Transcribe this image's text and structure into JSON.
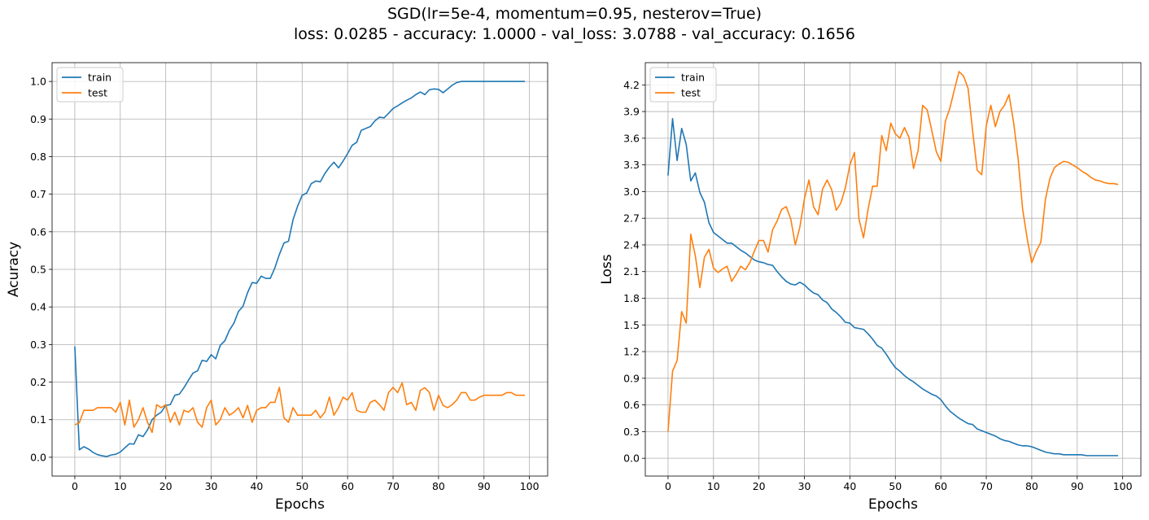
{
  "figure": {
    "title_line1": "SGD(lr=5e-4, momentum=0.95, nesterov=True)",
    "title_line2": "loss: 0.0285 - accuracy: 1.0000 - val_loss: 3.0788 - val_accuracy: 0.1656"
  },
  "colors": {
    "train": "#1f77b4",
    "test": "#ff7f0e",
    "grid": "#b0b0b0"
  },
  "chart_data": [
    {
      "type": "line",
      "title": "",
      "xlabel": "Epochs",
      "ylabel": "Acuracy",
      "xlim": [
        -5,
        104
      ],
      "ylim": [
        -0.05,
        1.05
      ],
      "xticks": [
        0,
        10,
        20,
        30,
        40,
        50,
        60,
        70,
        80,
        90,
        100
      ],
      "yticks": [
        0.0,
        0.1,
        0.2,
        0.3,
        0.4,
        0.5,
        0.6,
        0.7,
        0.8,
        0.9,
        1.0
      ],
      "ytick_labels": [
        "0.0",
        "0.1",
        "0.2",
        "0.3",
        "0.4",
        "0.5",
        "0.6",
        "0.7",
        "0.8",
        "0.9",
        "1.0"
      ],
      "grid": true,
      "legend_position": "upper-left",
      "series": [
        {
          "name": "train",
          "color": "#1f77b4",
          "values": [
            0.295,
            0.02,
            0.028,
            0.022,
            0.013,
            0.007,
            0.004,
            0.002,
            0.006,
            0.008,
            0.014,
            0.025,
            0.036,
            0.035,
            0.06,
            0.055,
            0.073,
            0.1,
            0.112,
            0.12,
            0.138,
            0.14,
            0.165,
            0.168,
            0.185,
            0.205,
            0.224,
            0.23,
            0.258,
            0.255,
            0.273,
            0.262,
            0.298,
            0.31,
            0.338,
            0.357,
            0.388,
            0.402,
            0.438,
            0.465,
            0.463,
            0.482,
            0.476,
            0.476,
            0.504,
            0.54,
            0.57,
            0.575,
            0.632,
            0.668,
            0.697,
            0.703,
            0.728,
            0.735,
            0.733,
            0.755,
            0.772,
            0.785,
            0.77,
            0.788,
            0.808,
            0.83,
            0.838,
            0.87,
            0.875,
            0.88,
            0.895,
            0.905,
            0.903,
            0.915,
            0.928,
            0.935,
            0.943,
            0.95,
            0.956,
            0.965,
            0.972,
            0.965,
            0.978,
            0.98,
            0.979,
            0.97,
            0.98,
            0.99,
            0.997,
            1.0,
            1.0,
            1.0,
            1.0,
            1.0,
            1.0,
            1.0,
            1.0,
            1.0,
            1.0,
            1.0,
            1.0,
            1.0,
            1.0,
            1.0
          ]
        },
        {
          "name": "test",
          "color": "#ff7f0e",
          "values": [
            0.086,
            0.092,
            0.125,
            0.125,
            0.125,
            0.132,
            0.132,
            0.132,
            0.132,
            0.12,
            0.146,
            0.086,
            0.152,
            0.08,
            0.1,
            0.132,
            0.093,
            0.066,
            0.14,
            0.132,
            0.14,
            0.093,
            0.12,
            0.086,
            0.125,
            0.12,
            0.132,
            0.093,
            0.08,
            0.132,
            0.152,
            0.086,
            0.1,
            0.132,
            0.112,
            0.12,
            0.132,
            0.105,
            0.138,
            0.093,
            0.125,
            0.132,
            0.132,
            0.146,
            0.146,
            0.186,
            0.105,
            0.093,
            0.132,
            0.112,
            0.112,
            0.112,
            0.112,
            0.125,
            0.105,
            0.12,
            0.16,
            0.112,
            0.132,
            0.16,
            0.152,
            0.172,
            0.125,
            0.12,
            0.12,
            0.146,
            0.152,
            0.14,
            0.125,
            0.172,
            0.186,
            0.172,
            0.198,
            0.14,
            0.146,
            0.125,
            0.178,
            0.185,
            0.172,
            0.125,
            0.165,
            0.138,
            0.132,
            0.14,
            0.152,
            0.172,
            0.172,
            0.152,
            0.152,
            0.16,
            0.165,
            0.165,
            0.165,
            0.165,
            0.165,
            0.172,
            0.172,
            0.165,
            0.165,
            0.165
          ]
        }
      ]
    },
    {
      "type": "line",
      "title": "",
      "xlabel": "Epochs",
      "ylabel": "Loss",
      "xlim": [
        -5,
        104
      ],
      "ylim": [
        -0.2,
        4.45
      ],
      "xticks": [
        0,
        10,
        20,
        30,
        40,
        50,
        60,
        70,
        80,
        90,
        100
      ],
      "yticks": [
        0.0,
        0.3,
        0.6,
        0.9,
        1.2,
        1.5,
        1.8,
        2.1,
        2.4,
        2.7,
        3.0,
        3.3,
        3.6,
        3.9,
        4.2
      ],
      "ytick_labels": [
        "0.0",
        "0.3",
        "0.6",
        "0.9",
        "1.2",
        "1.5",
        "1.8",
        "2.1",
        "2.4",
        "2.7",
        "3.0",
        "3.3",
        "3.6",
        "3.9",
        "4.2"
      ],
      "grid": true,
      "legend_position": "upper-left",
      "series": [
        {
          "name": "train",
          "color": "#1f77b4",
          "values": [
            3.18,
            3.82,
            3.35,
            3.71,
            3.53,
            3.12,
            3.21,
            2.99,
            2.88,
            2.65,
            2.54,
            2.5,
            2.46,
            2.42,
            2.42,
            2.38,
            2.34,
            2.31,
            2.27,
            2.23,
            2.21,
            2.2,
            2.18,
            2.17,
            2.1,
            2.04,
            1.99,
            1.96,
            1.95,
            1.98,
            1.95,
            1.9,
            1.86,
            1.84,
            1.78,
            1.75,
            1.68,
            1.64,
            1.59,
            1.53,
            1.52,
            1.47,
            1.46,
            1.45,
            1.4,
            1.34,
            1.27,
            1.24,
            1.17,
            1.09,
            1.02,
            0.98,
            0.93,
            0.89,
            0.86,
            0.82,
            0.78,
            0.75,
            0.72,
            0.7,
            0.66,
            0.59,
            0.53,
            0.49,
            0.45,
            0.42,
            0.39,
            0.38,
            0.33,
            0.31,
            0.29,
            0.27,
            0.25,
            0.22,
            0.2,
            0.19,
            0.17,
            0.15,
            0.14,
            0.14,
            0.13,
            0.11,
            0.09,
            0.07,
            0.06,
            0.05,
            0.05,
            0.04,
            0.04,
            0.04,
            0.04,
            0.04,
            0.03,
            0.03,
            0.03,
            0.03,
            0.03,
            0.03,
            0.03,
            0.03
          ]
        },
        {
          "name": "test",
          "color": "#ff7f0e",
          "values": [
            0.3,
            0.98,
            1.1,
            1.65,
            1.52,
            2.52,
            2.28,
            1.92,
            2.26,
            2.35,
            2.14,
            2.09,
            2.13,
            2.16,
            1.99,
            2.07,
            2.16,
            2.12,
            2.2,
            2.33,
            2.45,
            2.45,
            2.32,
            2.57,
            2.67,
            2.8,
            2.83,
            2.69,
            2.4,
            2.6,
            2.92,
            3.13,
            2.83,
            2.74,
            3.03,
            3.13,
            3.02,
            2.79,
            2.87,
            3.04,
            3.3,
            3.44,
            2.69,
            2.48,
            2.8,
            3.06,
            3.06,
            3.63,
            3.46,
            3.77,
            3.65,
            3.6,
            3.72,
            3.61,
            3.26,
            3.46,
            3.97,
            3.92,
            3.69,
            3.45,
            3.34,
            3.79,
            3.94,
            4.15,
            4.35,
            4.3,
            4.16,
            3.68,
            3.24,
            3.19,
            3.74,
            3.97,
            3.73,
            3.9,
            3.97,
            4.09,
            3.78,
            3.37,
            2.8,
            2.47,
            2.2,
            2.33,
            2.43,
            2.91,
            3.15,
            3.27,
            3.31,
            3.34,
            3.33,
            3.3,
            3.27,
            3.23,
            3.2,
            3.16,
            3.13,
            3.12,
            3.1,
            3.09,
            3.09,
            3.08
          ]
        }
      ]
    }
  ]
}
